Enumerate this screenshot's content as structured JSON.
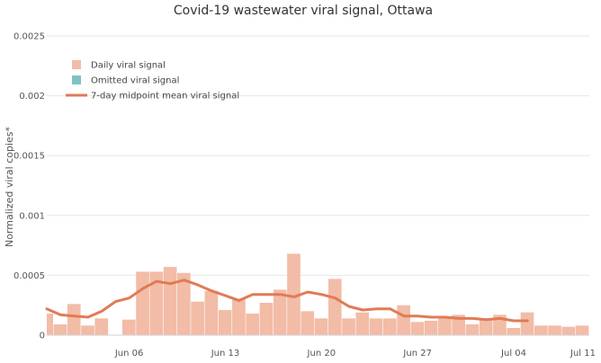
{
  "chart_data": {
    "type": "bar",
    "title": "Covid-19 wastewater viral signal, Ottawa",
    "xlabel": "",
    "ylabel": "Normalized viral copies*",
    "ylim": [
      0,
      0.0025
    ],
    "y_ticks": [
      {
        "value": 0,
        "label": "0"
      },
      {
        "value": 0.0005,
        "label": "0.0005"
      },
      {
        "value": 0.001,
        "label": "0.001"
      },
      {
        "value": 0.0015,
        "label": "0.0015"
      },
      {
        "value": 0.002,
        "label": "0.002"
      },
      {
        "value": 0.0025,
        "label": "0.0025"
      }
    ],
    "x_range_days": [
      0,
      39.5
    ],
    "x_ticks": [
      {
        "day": 6,
        "label": "Jun 06"
      },
      {
        "day": 13,
        "label": "Jun 13"
      },
      {
        "day": 20,
        "label": "Jun 20"
      },
      {
        "day": 27,
        "label": "Jun 27"
      },
      {
        "day": 34,
        "label": "Jul 04"
      },
      {
        "day": 41,
        "label": "Jul 11"
      }
    ],
    "x_day_origin": "May 31",
    "grid": true,
    "legend_position": "top-left",
    "legend": [
      {
        "key": "daily",
        "label": "Daily viral signal",
        "kind": "box"
      },
      {
        "key": "omitted",
        "label": "Omitted viral signal",
        "kind": "box"
      },
      {
        "key": "mean",
        "label": "7-day midpoint mean viral signal",
        "kind": "line"
      }
    ],
    "series": [
      {
        "name": "Daily viral signal",
        "key": "daily",
        "color": "#f2bca7",
        "x": [
          0,
          1,
          2,
          3,
          4,
          5,
          6,
          7,
          8,
          9,
          10,
          11,
          12,
          13,
          14,
          15,
          16,
          17,
          18,
          19,
          20,
          21,
          22,
          23,
          24,
          25,
          26,
          27,
          28,
          29,
          30,
          31,
          32,
          33,
          34,
          35,
          36,
          37,
          38,
          39
        ],
        "values": [
          0.00018,
          9e-05,
          0.00026,
          8e-05,
          0.00014,
          null,
          0.00013,
          0.00053,
          0.00053,
          0.00057,
          0.00052,
          0.00028,
          0.00037,
          0.00021,
          0.0003,
          0.00018,
          0.00027,
          0.00038,
          0.00068,
          0.0002,
          0.00014,
          0.00047,
          0.00014,
          0.00019,
          0.00014,
          0.00014,
          0.00025,
          0.00011,
          0.00012,
          0.00014,
          0.00017,
          9e-05,
          0.00014,
          0.00017,
          6e-05,
          0.00019,
          8e-05,
          8e-05,
          7e-05,
          8e-05
        ]
      },
      {
        "name": "Omitted viral signal",
        "key": "omitted",
        "color": "#7ec4c1",
        "x": [],
        "values": []
      },
      {
        "name": "7-day midpoint mean viral signal",
        "key": "mean",
        "color": "#e07b55",
        "x": [
          0,
          1,
          2,
          3,
          4,
          5,
          6,
          7,
          8,
          9,
          10,
          11,
          12,
          13,
          14,
          15,
          16,
          17,
          18,
          19,
          20,
          21,
          22,
          23,
          24,
          25,
          26,
          27,
          28,
          29,
          30,
          31,
          32,
          33,
          34,
          35
        ],
        "values": [
          0.00022,
          0.00017,
          0.00016,
          0.00015,
          0.0002,
          0.00028,
          0.00031,
          0.00039,
          0.00045,
          0.00043,
          0.00046,
          0.00042,
          0.00037,
          0.00033,
          0.00029,
          0.00034,
          0.00034,
          0.00034,
          0.00032,
          0.00036,
          0.00034,
          0.00031,
          0.00024,
          0.00021,
          0.00022,
          0.00022,
          0.00016,
          0.00016,
          0.00015,
          0.00015,
          0.00014,
          0.00014,
          0.00013,
          0.00014,
          0.00012,
          0.00012
        ]
      }
    ]
  }
}
